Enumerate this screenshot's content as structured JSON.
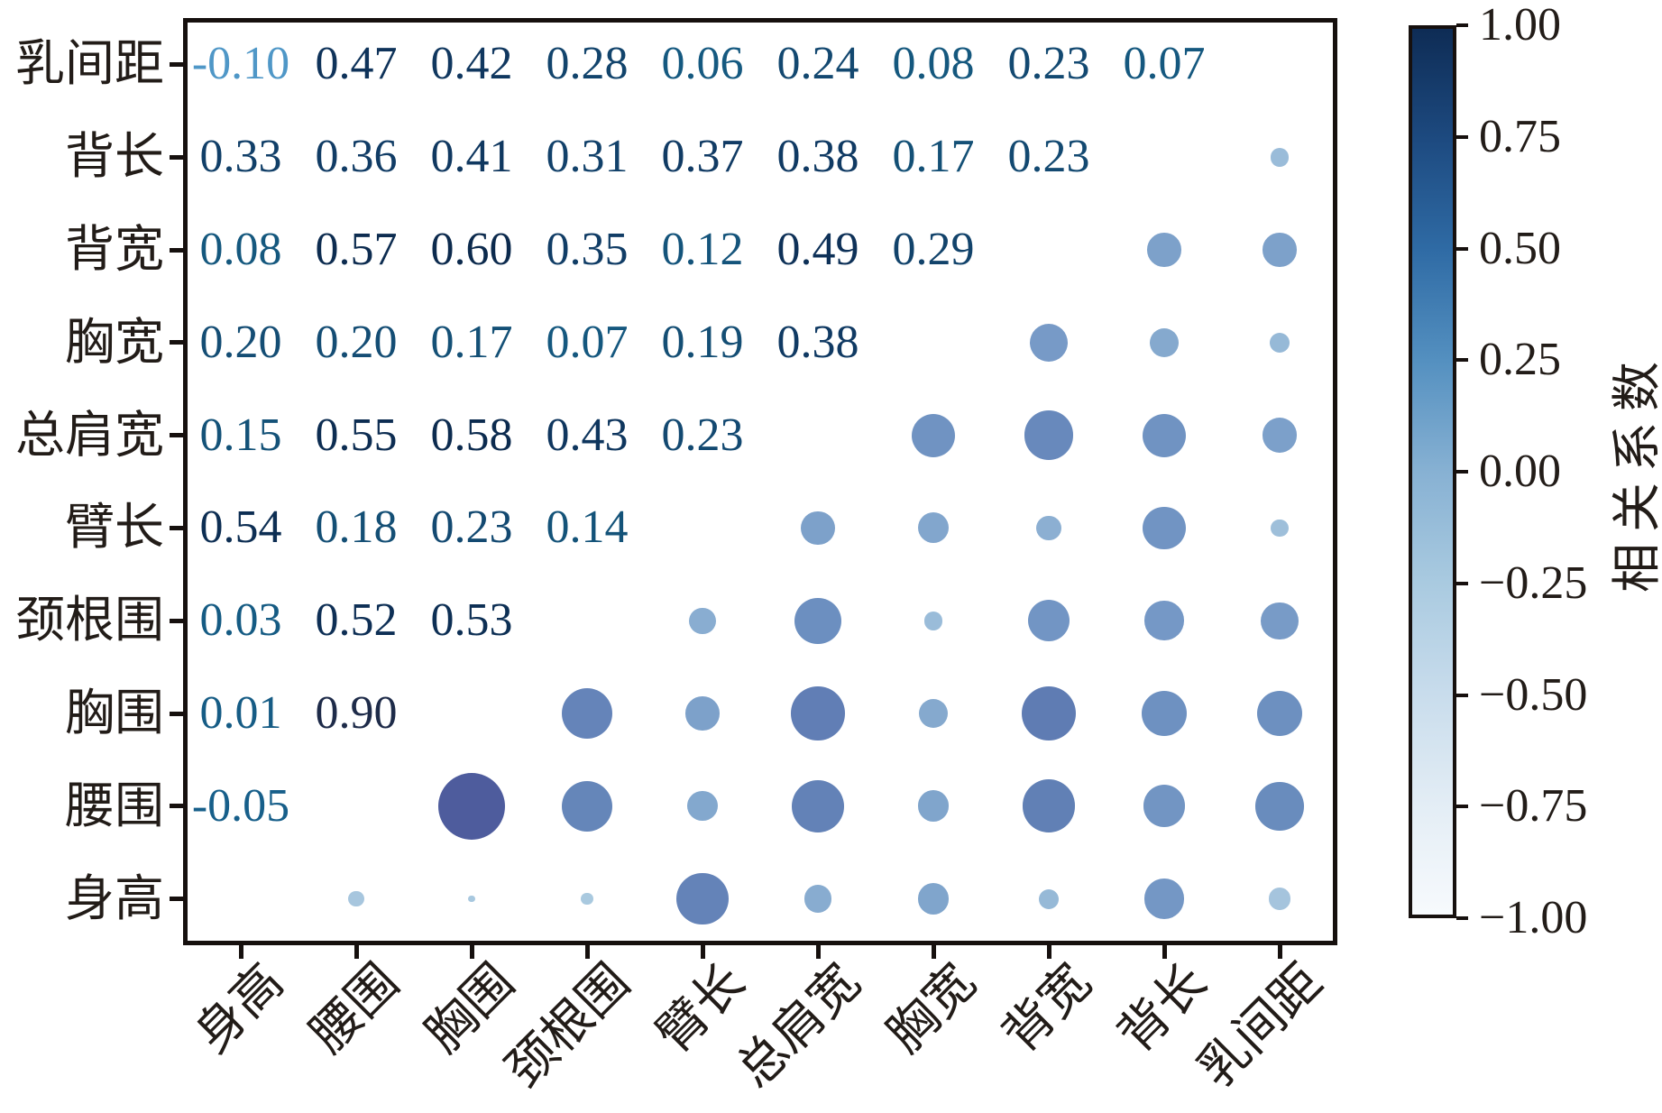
{
  "chart_data": {
    "type": "heatmap",
    "subtype": "correlation-bubble-matrix",
    "title": "",
    "xlabel": "",
    "ylabel": "",
    "x_categories": [
      "身高",
      "腰围",
      "胸围",
      "颈根围",
      "臂长",
      "总肩宽",
      "胸宽",
      "背宽",
      "背长",
      "乳间距"
    ],
    "y_categories": [
      "乳间距",
      "背长",
      "背宽",
      "胸宽",
      "总肩宽",
      "臂长",
      "颈根围",
      "胸围",
      "腰围",
      "身高"
    ],
    "layout_note": "upper-left triangle shows numeric correlation values, lower-right triangle shows bubbles sized and colored by correlation, diagonal empty, grid off",
    "matrix_rows": [
      {
        "label": "乳间距",
        "values": [
          -0.1,
          0.47,
          0.42,
          0.28,
          0.06,
          0.24,
          0.08,
          0.23,
          0.07,
          null
        ]
      },
      {
        "label": "背长",
        "values": [
          0.33,
          0.36,
          0.41,
          0.31,
          0.37,
          0.38,
          0.17,
          0.23,
          null,
          0.07
        ]
      },
      {
        "label": "背宽",
        "values": [
          0.08,
          0.57,
          0.6,
          0.35,
          0.12,
          0.49,
          0.29,
          null,
          0.23,
          0.23
        ]
      },
      {
        "label": "胸宽",
        "values": [
          0.2,
          0.2,
          0.17,
          0.07,
          0.19,
          0.38,
          null,
          0.29,
          0.17,
          0.08
        ]
      },
      {
        "label": "总肩宽",
        "values": [
          0.15,
          0.55,
          0.58,
          0.43,
          0.23,
          null,
          0.38,
          0.49,
          0.38,
          0.24
        ]
      },
      {
        "label": "臂长",
        "values": [
          0.54,
          0.18,
          0.23,
          0.14,
          null,
          0.23,
          0.19,
          0.12,
          0.37,
          0.06
        ]
      },
      {
        "label": "颈根围",
        "values": [
          0.03,
          0.52,
          0.53,
          null,
          0.14,
          0.43,
          0.07,
          0.35,
          0.31,
          0.28
        ]
      },
      {
        "label": "胸围",
        "values": [
          0.01,
          0.9,
          null,
          0.53,
          0.23,
          0.58,
          0.17,
          0.6,
          0.41,
          0.42
        ]
      },
      {
        "label": "腰围",
        "values": [
          -0.05,
          null,
          0.9,
          0.52,
          0.18,
          0.55,
          0.2,
          0.57,
          0.36,
          0.47
        ]
      },
      {
        "label": "身高",
        "values": [
          null,
          -0.05,
          0.01,
          0.03,
          0.54,
          0.15,
          0.2,
          0.08,
          0.33,
          -0.1
        ]
      }
    ],
    "colorbar": {
      "label": "相关系数",
      "vmin": -1.0,
      "vmax": 1.0,
      "tick_labels": [
        "1.00",
        "0.75",
        "0.50",
        "0.25",
        "0.00",
        "−0.25",
        "−0.50",
        "−0.75",
        "−1.00"
      ],
      "gradient": [
        {
          "v": 1.0,
          "c": "#0e2c55"
        },
        {
          "v": 0.75,
          "c": "#1d4a80"
        },
        {
          "v": 0.5,
          "c": "#2f6ba5"
        },
        {
          "v": 0.25,
          "c": "#5490c0"
        },
        {
          "v": 0.0,
          "c": "#87b1d3"
        },
        {
          "v": -0.25,
          "c": "#a9cae0"
        },
        {
          "v": -0.5,
          "c": "#c8dcec"
        },
        {
          "v": -0.75,
          "c": "#e3edf5"
        },
        {
          "v": -1.0,
          "c": "#f7fafd"
        }
      ]
    },
    "colormaps": {
      "text": [
        {
          "v": -0.1,
          "c": "#4f97c7"
        },
        {
          "v": -0.05,
          "c": "#175f8a"
        },
        {
          "v": 0.05,
          "c": "#155a81"
        },
        {
          "v": 0.15,
          "c": "#145278"
        },
        {
          "v": 0.25,
          "c": "#13476f"
        },
        {
          "v": 0.35,
          "c": "#113d66"
        },
        {
          "v": 0.45,
          "c": "#0f345c"
        },
        {
          "v": 0.6,
          "c": "#0c2a4d"
        },
        {
          "v": 0.9,
          "c": "#1e2b49"
        }
      ],
      "bubble": [
        {
          "v": -0.1,
          "c": "#a5c4dd"
        },
        {
          "v": 0.03,
          "c": "#a9c9df"
        },
        {
          "v": 0.1,
          "c": "#8fb2d4"
        },
        {
          "v": 0.2,
          "c": "#80a5cc"
        },
        {
          "v": 0.3,
          "c": "#7699c6"
        },
        {
          "v": 0.45,
          "c": "#6b8ebf"
        },
        {
          "v": 0.6,
          "c": "#5f7cb3"
        },
        {
          "v": 0.9,
          "c": "#4e5c9d"
        }
      ]
    },
    "axis_color": "#16100e",
    "tick_label_color": "#221c18"
  }
}
